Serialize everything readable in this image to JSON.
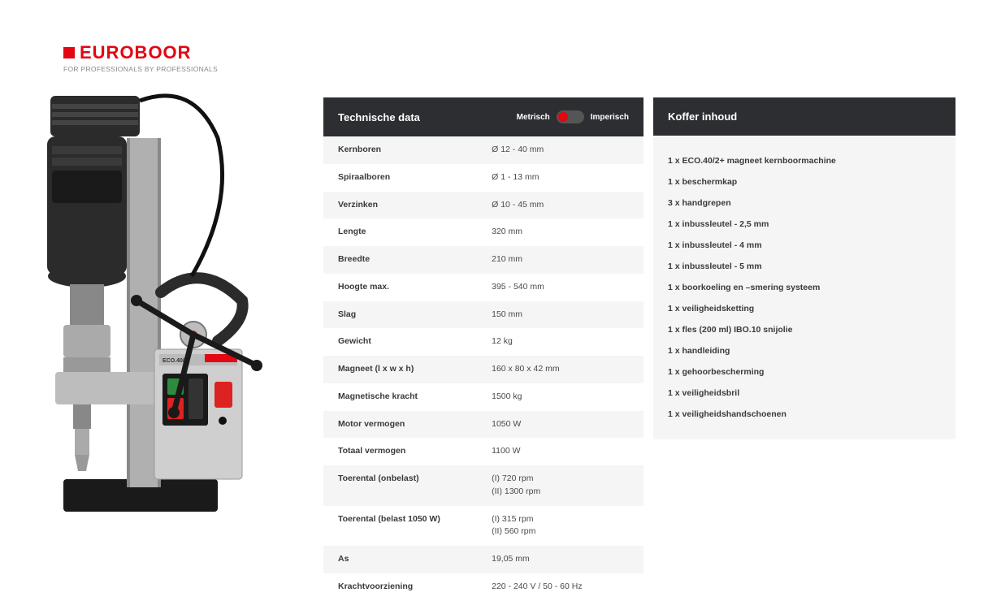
{
  "logo": {
    "brand": "EUROBOOR",
    "tagline": "FOR PROFESSIONALS BY PROFESSIONALS",
    "color": "#e30613"
  },
  "tech": {
    "title": "Technische data",
    "toggle": {
      "left": "Metrisch",
      "right": "Imperisch"
    },
    "rows": [
      {
        "label": "Kernboren",
        "value": "Ø 12 - 40 mm"
      },
      {
        "label": "Spiraalboren",
        "value": "Ø 1 - 13 mm"
      },
      {
        "label": "Verzinken",
        "value": "Ø 10 - 45 mm"
      },
      {
        "label": "Lengte",
        "value": "320 mm"
      },
      {
        "label": "Breedte",
        "value": "210 mm"
      },
      {
        "label": "Hoogte max.",
        "value": "395 - 540 mm"
      },
      {
        "label": "Slag",
        "value": "150 mm"
      },
      {
        "label": "Gewicht",
        "value": "12 kg"
      },
      {
        "label": "Magneet (l x w x h)",
        "value": "160 x 80 x 42 mm"
      },
      {
        "label": "Magnetische kracht",
        "value": "1500 kg"
      },
      {
        "label": "Motor vermogen",
        "value": "1050 W"
      },
      {
        "label": "Totaal vermogen",
        "value": "1100 W"
      },
      {
        "label": "Toerental (onbelast)",
        "value": "(I) 720 rpm\n(II) 1300 rpm"
      },
      {
        "label": "Toerental (belast 1050 W)",
        "value": "(I) 315 rpm\n(II) 560 rpm"
      },
      {
        "label": "As",
        "value": "19,05 mm"
      },
      {
        "label": "Krachtvoorziening",
        "value": "220 - 240 V / 50 - 60 Hz"
      }
    ]
  },
  "box": {
    "title": "Koffer inhoud",
    "items": [
      "1 x ECO.40/2+ magneet kernboormachine",
      "1 x beschermkap",
      "3 x handgrepen",
      "1 x inbussleutel - 2,5 mm",
      "1 x inbussleutel - 4 mm",
      "1 x inbussleutel - 5 mm",
      "1 x boorkoeling en –smering systeem",
      "1 x veiligheidsketting",
      "1 x fles (200 ml) IBO.10 snijolie",
      "1 x handleiding",
      "1 x gehoorbescherming",
      "1 x veiligheidsbril",
      "1 x veiligheidshandschoenen"
    ]
  },
  "product_svg": {
    "motor_color": "#2b2b2b",
    "body_color": "#bdbdbd",
    "base_color": "#1a1a1a",
    "panel_color": "#cfcfcf",
    "green_btn": "#2e8b3d",
    "red_btn": "#d22",
    "black_btn": "#111",
    "label_text": "ECO.40/2",
    "brand_label_bg": "#e30613"
  }
}
